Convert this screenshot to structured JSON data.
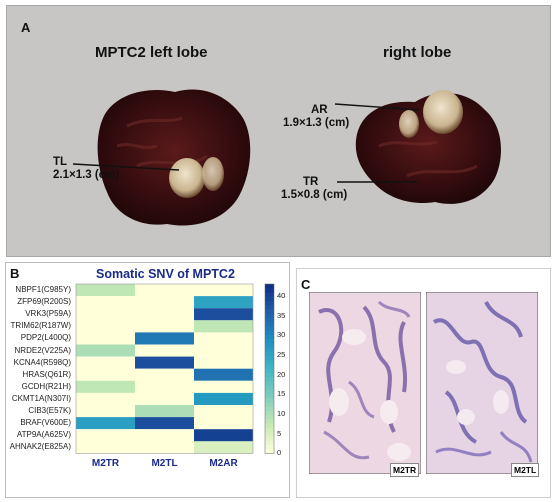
{
  "panel_a": {
    "label": "A",
    "left_title": "MPTC2 left lobe",
    "right_title": "right lobe",
    "annotations": [
      {
        "name": "TL",
        "size": "2.1×1.3 (cm)"
      },
      {
        "name": "AR",
        "size": "1.9×1.3 (cm)"
      },
      {
        "name": "TR",
        "size": "1.5×0.8 (cm)"
      }
    ]
  },
  "panel_b": {
    "label": "B",
    "colorbar_ticks": [
      "40",
      "35",
      "30",
      "25",
      "20",
      "15",
      "10",
      "5",
      "0"
    ]
  },
  "panel_c": {
    "label": "C",
    "image_labels": [
      "M2TR",
      "M2TL"
    ]
  },
  "chart_data": {
    "type": "heatmap",
    "title": "Somatic SNV of MPTC2",
    "columns": [
      "M2TR",
      "M2TL",
      "M2AR"
    ],
    "rows": [
      "NBPF1(C985Y)",
      "ZFP69(R200S)",
      "VRK3(P59A)",
      "TRIM62(R187W)",
      "PDP2(L400Q)",
      "NRDE2(V225A)",
      "KCNA4(R598Q)",
      "HRAS(Q61R)",
      "GCDH(R21H)",
      "CKMT1A(N307I)",
      "CIB3(E57K)",
      "BRAF(V600E)",
      "ATP9A(A625V)",
      "AHNAK2(E825A)"
    ],
    "values": [
      [
        8,
        0,
        0
      ],
      [
        0,
        0,
        25
      ],
      [
        0,
        0,
        38
      ],
      [
        0,
        0,
        8
      ],
      [
        0,
        32,
        0
      ],
      [
        10,
        0,
        0
      ],
      [
        0,
        38,
        0
      ],
      [
        0,
        0,
        33
      ],
      [
        8,
        0,
        0
      ],
      [
        0,
        0,
        27
      ],
      [
        0,
        10,
        0
      ],
      [
        26,
        38,
        0
      ],
      [
        0,
        0,
        40
      ],
      [
        0,
        0,
        5
      ]
    ],
    "colorscale": {
      "min": 0,
      "max": 43,
      "colors": [
        "#ffffd9",
        "#c7e9b4",
        "#7fcdbb",
        "#41b6c4",
        "#1d91c0",
        "#225ea8",
        "#0c2c84"
      ]
    }
  }
}
